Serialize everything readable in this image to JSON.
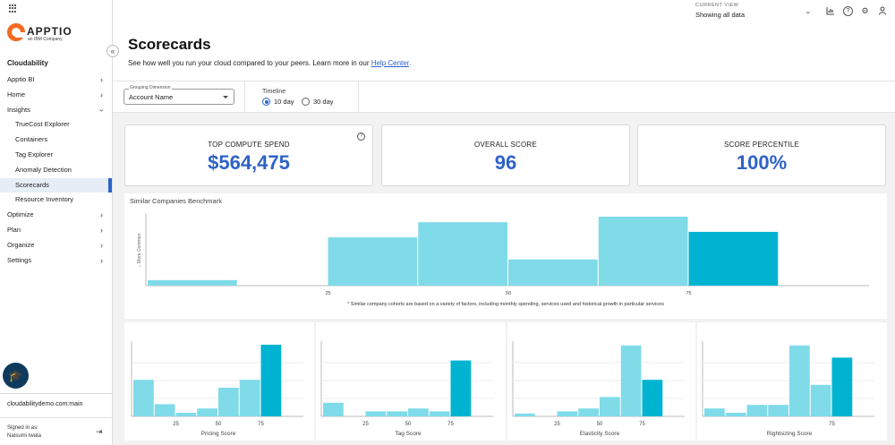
{
  "sidebar": {
    "logo_text": "APPTIO",
    "logo_sub": "an IBM Company",
    "title": "Cloudability",
    "items": [
      {
        "label": "Apptio BI",
        "sub": false,
        "chevron": "right",
        "active": false
      },
      {
        "label": "Home",
        "sub": false,
        "chevron": "right",
        "active": false
      },
      {
        "label": "Insights",
        "sub": false,
        "chevron": "down",
        "active": false
      },
      {
        "label": "TrueCost Explorer",
        "sub": true,
        "chevron": "",
        "active": false
      },
      {
        "label": "Containers",
        "sub": true,
        "chevron": "",
        "active": false
      },
      {
        "label": "Tag Explorer",
        "sub": true,
        "chevron": "",
        "active": false
      },
      {
        "label": "Anomaly Detection",
        "sub": true,
        "chevron": "",
        "active": false
      },
      {
        "label": "Scorecards",
        "sub": true,
        "chevron": "",
        "active": true
      },
      {
        "label": "Resource Inventory",
        "sub": true,
        "chevron": "",
        "active": false
      },
      {
        "label": "Optimize",
        "sub": false,
        "chevron": "right",
        "active": false
      },
      {
        "label": "Plan",
        "sub": false,
        "chevron": "right",
        "active": false
      },
      {
        "label": "Organize",
        "sub": false,
        "chevron": "right",
        "active": false
      },
      {
        "label": "Settings",
        "sub": false,
        "chevron": "right",
        "active": false
      }
    ],
    "org": "cloudabilitydemo.com:main",
    "signed_in_label": "Signed in as:",
    "signed_in_user": "Natsumi Iwata"
  },
  "header": {
    "title": "Scorecards",
    "description": "See how well you run your cloud compared to your peers. Learn more in our ",
    "help_link": "Help Center",
    "description_end": ".",
    "current_view_label": "CURRENT VIEW",
    "current_view_value": "Showing all data"
  },
  "filters": {
    "grouping_label": "Grouping Dimension",
    "grouping_value": "Account Name",
    "timeline_label": "Timeline",
    "options": [
      "10 day",
      "30 day"
    ],
    "selected": "10 day"
  },
  "cards": [
    {
      "label": "TOP COMPUTE SPEND",
      "value": "$564,475"
    },
    {
      "label": "OVERALL SCORE",
      "value": "96"
    },
    {
      "label": "SCORE PERCENTILE",
      "value": "100%"
    }
  ],
  "colors": {
    "bar": "#80dbe9",
    "bar_highlight": "#00b4d1",
    "accent": "#2f62c8"
  },
  "chart_data": [
    {
      "type": "bar",
      "title": "Similar Companies Benchmark",
      "ylabel": "→ More Common",
      "xticks": [
        25,
        50,
        75
      ],
      "xlim": [
        0,
        100
      ],
      "bins": [
        {
          "x0": 0,
          "x1": 12.5,
          "value": 8
        },
        {
          "x0": 25,
          "x1": 37.5,
          "value": 70
        },
        {
          "x0": 37.5,
          "x1": 50,
          "value": 92
        },
        {
          "x0": 50,
          "x1": 62.5,
          "value": 38
        },
        {
          "x0": 62.5,
          "x1": 75,
          "value": 100
        },
        {
          "x0": 75,
          "x1": 87.5,
          "value": 78,
          "highlight": true
        }
      ],
      "note": "* Similar company cohorts are based on a variety of factors, including monthly spending, services used and historical growth in particular services"
    },
    {
      "type": "bar",
      "xlabel": "Pricing Score",
      "xticks": [
        25,
        50,
        75
      ],
      "xlim": [
        0,
        100
      ],
      "bins": [
        {
          "x0": 0,
          "x1": 12.5,
          "value": 51
        },
        {
          "x0": 12.5,
          "x1": 25,
          "value": 17
        },
        {
          "x0": 25,
          "x1": 37.5,
          "value": 5
        },
        {
          "x0": 37.5,
          "x1": 50,
          "value": 11
        },
        {
          "x0": 50,
          "x1": 62.5,
          "value": 40
        },
        {
          "x0": 62.5,
          "x1": 75,
          "value": 51
        },
        {
          "x0": 75,
          "x1": 87.5,
          "value": 100,
          "highlight": true
        }
      ]
    },
    {
      "type": "bar",
      "xlabel": "Tag Score",
      "xticks": [
        25,
        50,
        75
      ],
      "xlim": [
        0,
        100
      ],
      "bins": [
        {
          "x0": 0,
          "x1": 12.5,
          "value": 19
        },
        {
          "x0": 25,
          "x1": 37.5,
          "value": 7
        },
        {
          "x0": 37.5,
          "x1": 50,
          "value": 7
        },
        {
          "x0": 50,
          "x1": 62.5,
          "value": 11
        },
        {
          "x0": 62.5,
          "x1": 75,
          "value": 7
        },
        {
          "x0": 75,
          "x1": 87.5,
          "value": 78,
          "highlight": true
        }
      ]
    },
    {
      "type": "bar",
      "xlabel": "Elasticity Score",
      "xticks": [
        25,
        50,
        75
      ],
      "xlim": [
        0,
        100
      ],
      "bins": [
        {
          "x0": 0,
          "x1": 12.5,
          "value": 4
        },
        {
          "x0": 25,
          "x1": 37.5,
          "value": 7
        },
        {
          "x0": 37.5,
          "x1": 50,
          "value": 11
        },
        {
          "x0": 50,
          "x1": 62.5,
          "value": 27
        },
        {
          "x0": 62.5,
          "x1": 75,
          "value": 99
        },
        {
          "x0": 75,
          "x1": 87.5,
          "value": 51,
          "highlight": true
        }
      ]
    },
    {
      "type": "bar",
      "xlabel": "Rightsizing Score",
      "xticks": [
        75
      ],
      "xlim": [
        0,
        100
      ],
      "bins": [
        {
          "x0": 0,
          "x1": 12.5,
          "value": 11
        },
        {
          "x0": 12.5,
          "x1": 25,
          "value": 5
        },
        {
          "x0": 25,
          "x1": 37.5,
          "value": 16
        },
        {
          "x0": 37.5,
          "x1": 50,
          "value": 16
        },
        {
          "x0": 50,
          "x1": 62.5,
          "value": 99
        },
        {
          "x0": 62.5,
          "x1": 75,
          "value": 44
        },
        {
          "x0": 75,
          "x1": 87.5,
          "value": 82,
          "highlight": true
        }
      ]
    }
  ]
}
